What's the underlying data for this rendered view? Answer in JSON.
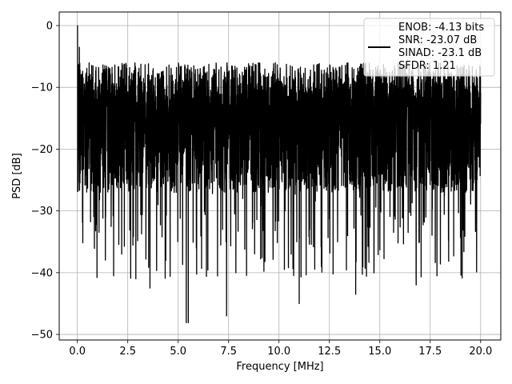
{
  "chart_data": {
    "type": "line",
    "xlabel": "Frequency [MHz]",
    "ylabel": "PSD [dB]",
    "xlim": [
      -0.9,
      21.0
    ],
    "ylim": [
      -50.9,
      2.2
    ],
    "xticks": [
      0.0,
      2.5,
      5.0,
      7.5,
      10.0,
      12.5,
      15.0,
      17.5,
      20.0
    ],
    "xtick_labels": [
      "0.0",
      "2.5",
      "5.0",
      "7.5",
      "10.0",
      "12.5",
      "15.0",
      "17.5",
      "20.0"
    ],
    "yticks": [
      0,
      -10,
      -20,
      -30,
      -40,
      -50
    ],
    "ytick_labels": [
      "0",
      "−10",
      "−20",
      "−30",
      "−40",
      "−50"
    ],
    "grid": true,
    "legend_position": "top-right",
    "series": [
      {
        "name": "ENOB: -4.13 bits",
        "color": "#000000",
        "x_start": 0.0,
        "x_end": 20.0,
        "typical_range": [
          -27,
          -5
        ],
        "min": -48.1,
        "max": 0.0,
        "values": [
          0.0,
          -3.5,
          -12.0,
          -20.1,
          -24.2,
          -10.1,
          -16.0,
          -22.5,
          -13.1,
          -18.0,
          -28.2,
          -11.0,
          -19.5,
          -31.0,
          -15.2,
          -9.5,
          -20.0,
          -40.5,
          -14.0,
          -25.3,
          -12.4,
          -37.0,
          -18.2,
          -10.7,
          -33.1,
          -21.0,
          -16.8,
          -41.0,
          -13.5,
          -26.0,
          -9.1,
          -19.5,
          -37.8,
          -15.0,
          -42.5,
          -22.1,
          -11.5,
          -29.0,
          -16.2,
          -34.2,
          -10.4,
          -24.0,
          -18.5,
          -40.6,
          -13.0,
          -27.0,
          -8.8,
          -21.5,
          -31.2,
          -14.6,
          -19.0,
          -48.1,
          -12.2,
          -25.5,
          -17.0,
          -36.0,
          -10.0,
          -23.4,
          -15.5,
          -30.1,
          -40.6,
          -12.8,
          -20.0,
          -27.2,
          -16.1,
          -9.9,
          -22.5,
          -33.0,
          -14.4,
          -47.0,
          -11.3,
          -26.4,
          -18.1,
          -30.5,
          -13.1,
          -21.2,
          -9.4,
          -28.0,
          -36.2,
          -15.0,
          -24.0,
          -8.5,
          -19.6,
          -31.4,
          -12.7,
          -29.2,
          -17.3,
          -38.2,
          -10.2,
          -23.0,
          -16.7,
          -33.0,
          -12.3,
          -25.0,
          -9.0,
          -20.4,
          -30.0,
          -14.8,
          -22.6,
          -37.0,
          -11.7,
          -27.3,
          -18.4,
          -45.0,
          -13.9,
          -24.8,
          -9.7,
          -21.1,
          -35.4,
          -15.7,
          -28.4,
          -10.6,
          -19.2,
          -39.0,
          -12.9,
          -26.1,
          -16.5,
          -31.3,
          -8.9,
          -22.9,
          -14.1,
          -30.7,
          -11.4,
          -25.9,
          -18.8,
          -34.0,
          -10.3,
          -21.6,
          -15.4,
          -43.5,
          -12.1,
          -27.8,
          -9.3,
          -23.7,
          -17.8,
          -32.6,
          -11.9,
          -20.7,
          -29.4,
          -14.2,
          -36.3,
          -10.8,
          -24.4,
          -8.7,
          -19.9,
          -30.9,
          -13.6,
          -26.8,
          -17.6,
          -35.2,
          -11.1,
          -22.2,
          -15.9,
          -33.5,
          -9.6,
          -28.7,
          -19.3,
          -42.0,
          -12.5,
          -25.2,
          -16.4,
          -31.8,
          -10.9,
          -23.3,
          -14.9,
          -29.7,
          -9.2,
          -21.9,
          -38.6,
          -13.3,
          -27.5,
          -17.1,
          -34.8,
          -11.6,
          -24.6,
          -15.3,
          -20.3,
          -30.3,
          -12.0,
          -25.7,
          -9.8,
          -22.0,
          -28.9,
          -16.9,
          -12.6,
          -26.5,
          -18.6,
          -24.9
        ]
      }
    ],
    "legend_entries": [
      "ENOB: -4.13 bits",
      "SNR: -23.07 dB",
      "SINAD: -23.1 dB",
      "SFDR: 1.21"
    ]
  }
}
